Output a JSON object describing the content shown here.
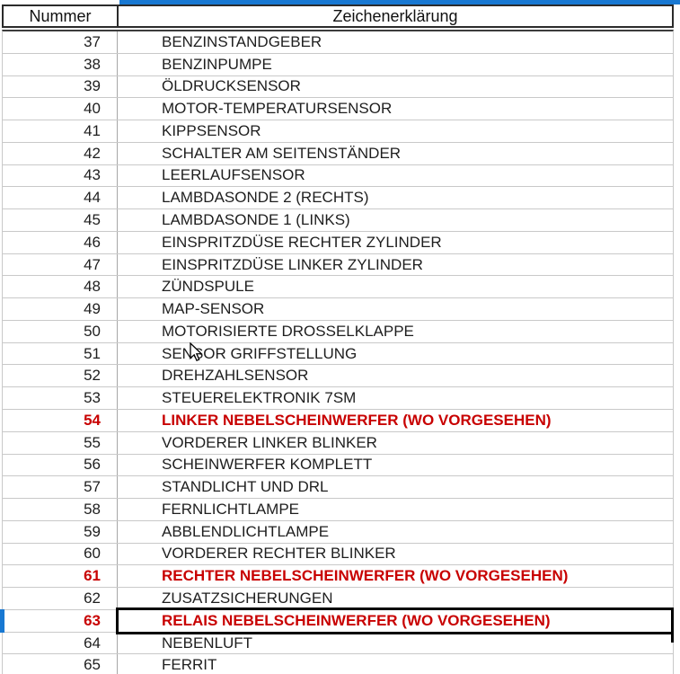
{
  "table": {
    "headers": {
      "number": "Nummer",
      "legend": "Zeichenerklärung"
    },
    "rows": [
      {
        "number": "37",
        "legend": "BENZINSTANDGEBER",
        "highlight": false,
        "selected": false
      },
      {
        "number": "38",
        "legend": "BENZINPUMPE",
        "highlight": false,
        "selected": false
      },
      {
        "number": "39",
        "legend": "ÖLDRUCKSENSOR",
        "highlight": false,
        "selected": false
      },
      {
        "number": "40",
        "legend": "MOTOR-TEMPERATURSENSOR",
        "highlight": false,
        "selected": false
      },
      {
        "number": "41",
        "legend": "KIPPSENSOR",
        "highlight": false,
        "selected": false
      },
      {
        "number": "42",
        "legend": "SCHALTER AM SEITENSTÄNDER",
        "highlight": false,
        "selected": false
      },
      {
        "number": "43",
        "legend": "LEERLAUFSENSOR",
        "highlight": false,
        "selected": false
      },
      {
        "number": "44",
        "legend": "LAMBDASONDE 2 (RECHTS)",
        "highlight": false,
        "selected": false
      },
      {
        "number": "45",
        "legend": "LAMBDASONDE 1 (LINKS)",
        "highlight": false,
        "selected": false
      },
      {
        "number": "46",
        "legend": "EINSPRITZDÜSE RECHTER ZYLINDER",
        "highlight": false,
        "selected": false
      },
      {
        "number": "47",
        "legend": "EINSPRITZDÜSE LINKER ZYLINDER",
        "highlight": false,
        "selected": false
      },
      {
        "number": "48",
        "legend": "ZÜNDSPULE",
        "highlight": false,
        "selected": false
      },
      {
        "number": "49",
        "legend": "MAP-SENSOR",
        "highlight": false,
        "selected": false
      },
      {
        "number": "50",
        "legend": "MOTORISIERTE DROSSELKLAPPE",
        "highlight": false,
        "selected": false
      },
      {
        "number": "51",
        "legend": "SENSOR GRIFFSTELLUNG",
        "highlight": false,
        "selected": false
      },
      {
        "number": "52",
        "legend": "DREHZAHLSENSOR",
        "highlight": false,
        "selected": false
      },
      {
        "number": "53",
        "legend": "STEUERELEKTRONIK 7SM",
        "highlight": false,
        "selected": false
      },
      {
        "number": "54",
        "legend": "LINKER NEBELSCHEINWERFER (WO VORGESEHEN)",
        "highlight": true,
        "selected": false
      },
      {
        "number": "55",
        "legend": "VORDERER LINKER BLINKER",
        "highlight": false,
        "selected": false
      },
      {
        "number": "56",
        "legend": "SCHEINWERFER KOMPLETT",
        "highlight": false,
        "selected": false
      },
      {
        "number": "57",
        "legend": "STANDLICHT UND DRL",
        "highlight": false,
        "selected": false
      },
      {
        "number": "58",
        "legend": "FERNLICHTLAMPE",
        "highlight": false,
        "selected": false
      },
      {
        "number": "59",
        "legend": "ABBLENDLICHTLAMPE",
        "highlight": false,
        "selected": false
      },
      {
        "number": "60",
        "legend": "VORDERER RECHTER BLINKER",
        "highlight": false,
        "selected": false
      },
      {
        "number": "61",
        "legend": "RECHTER NEBELSCHEINWERFER (WO VORGESEHEN)",
        "highlight": true,
        "selected": false
      },
      {
        "number": "62",
        "legend": "ZUSATZSICHERUNGEN",
        "highlight": false,
        "selected": false
      },
      {
        "number": "63",
        "legend": "RELAIS NEBELSCHEINWERFER (WO VORGESEHEN)",
        "highlight": true,
        "selected": true
      },
      {
        "number": "64",
        "legend": "NEBENLUFT",
        "highlight": false,
        "selected": false
      },
      {
        "number": "65",
        "legend": "FERRIT",
        "highlight": false,
        "selected": false
      }
    ]
  },
  "colors": {
    "accent_blue": "#1878d2",
    "highlight_red": "#c80000",
    "grid_line": "#c9c9c9",
    "header_border": "#2b2b2b",
    "text": "#1e1e1e"
  },
  "cursor": {
    "type": "arrow"
  }
}
